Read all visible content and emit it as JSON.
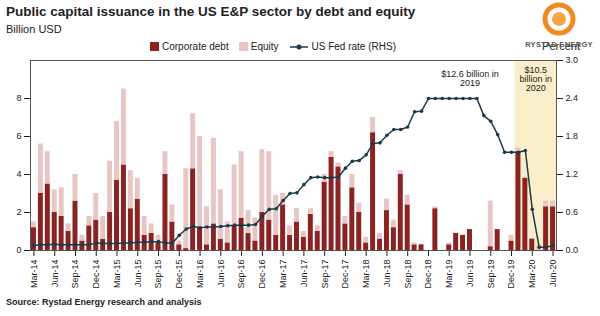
{
  "chart_data": {
    "type": "bar",
    "title": "Public capital issuance in the US E&P sector by debt and equity",
    "y_label": "Billion USD",
    "y2_label": "Percent",
    "source": "Source: Rystad Energy research and analysis",
    "logo": "RYSTAD ENERGY",
    "annotations": [
      "$12.6 billion in 2019",
      "$10.5 billion in 2020"
    ],
    "stacked": true,
    "grid": false,
    "legend": "top",
    "categories": [
      "Mar-14",
      null,
      null,
      "Jun-14",
      null,
      null,
      "Sep-14",
      null,
      null,
      "Dec-14",
      null,
      null,
      "Mar-15",
      null,
      null,
      "Jun-15",
      null,
      null,
      "Sep-15",
      null,
      null,
      "Dec-15",
      null,
      null,
      "Mar-16",
      null,
      null,
      "Jun-16",
      null,
      null,
      "Sep-16",
      null,
      null,
      "Dec-16",
      null,
      null,
      "Mar-17",
      null,
      null,
      "Jun-17",
      null,
      null,
      "Sep-17",
      null,
      null,
      "Dec-17",
      null,
      null,
      "Mar-18",
      null,
      null,
      "Jun-18",
      null,
      null,
      "Sep-18",
      null,
      null,
      "Dec-18",
      null,
      null,
      "Mar-19",
      null,
      null,
      "Jun-19",
      null,
      null,
      "Sep-19",
      null,
      null,
      "Dec-19",
      null,
      null,
      "Mar-20",
      null,
      null,
      "Jun-20"
    ],
    "series": [
      {
        "name": "Corporate debt",
        "type": "bar",
        "color": "#8b2323",
        "values": [
          1.2,
          3.0,
          3.5,
          2.0,
          1.8,
          1.0,
          2.6,
          0.5,
          1.3,
          1.6,
          0.6,
          2.0,
          3.7,
          4.5,
          2.2,
          2.7,
          0.8,
          0.9,
          0.4,
          4.0,
          1.5,
          0.3,
          0.1,
          4.3,
          1.2,
          0.3,
          1.4,
          0.6,
          0.4,
          1.3,
          1.7,
          0.9,
          0.5,
          2.0,
          1.6,
          0.8,
          2.4,
          0.8,
          1.5,
          0.7,
          1.9,
          1.0,
          3.6,
          4.9,
          4.4,
          1.4,
          3.3,
          2.0,
          0.4,
          6.2,
          0.6,
          2.1,
          1.2,
          4.0,
          2.4,
          0.3,
          0.3,
          0.0,
          2.2,
          0.0,
          0.3,
          0.9,
          0.8,
          1.1,
          0.0,
          0.0,
          0.2,
          1.1,
          0.0,
          0.5,
          5.2,
          3.8,
          0.6,
          0.0,
          2.3,
          2.3
        ]
      },
      {
        "name": "Equity",
        "type": "bar",
        "color": "#e9c6c6",
        "values": [
          0.3,
          2.6,
          1.7,
          1.2,
          1.5,
          0.4,
          1.4,
          0.3,
          0.5,
          1.4,
          1.2,
          2.7,
          3.1,
          4.0,
          2.0,
          1.1,
          1.0,
          0.5,
          0.4,
          1.2,
          0.9,
          0.2,
          4.2,
          2.9,
          4.8,
          2.0,
          4.5,
          2.6,
          1.1,
          3.2,
          3.5,
          1.2,
          1.2,
          3.3,
          3.6,
          2.1,
          0.6,
          0.5,
          0.7,
          0.3,
          0.3,
          0.3,
          0.4,
          0.3,
          0.2,
          0.4,
          0.7,
          0.5,
          0.3,
          0.8,
          0.3,
          0.6,
          0.4,
          0.2,
          0.5,
          0.1,
          0.0,
          0.0,
          0.1,
          0.0,
          0.1,
          0.0,
          0.0,
          0.0,
          0.0,
          0.0,
          2.4,
          0.0,
          0.0,
          0.3,
          0.2,
          0.0,
          0.0,
          0.3,
          0.3,
          0.3
        ]
      },
      {
        "name": "US Fed rate (RHS)",
        "type": "line",
        "axis": "y2",
        "color": "#1c3b4a",
        "marker": "circle",
        "values": [
          0.08,
          0.09,
          0.09,
          0.1,
          0.09,
          0.09,
          0.09,
          0.09,
          0.09,
          0.12,
          0.11,
          0.11,
          0.11,
          0.12,
          0.12,
          0.13,
          0.13,
          0.14,
          0.14,
          0.12,
          0.12,
          0.24,
          0.34,
          0.38,
          0.36,
          0.37,
          0.37,
          0.38,
          0.39,
          0.4,
          0.4,
          0.4,
          0.41,
          0.54,
          0.65,
          0.66,
          0.79,
          0.9,
          0.91,
          1.04,
          1.15,
          1.16,
          1.15,
          1.15,
          1.16,
          1.3,
          1.41,
          1.42,
          1.51,
          1.69,
          1.7,
          1.82,
          1.91,
          1.91,
          1.95,
          2.19,
          2.2,
          2.4,
          2.4,
          2.4,
          2.4,
          2.4,
          2.4,
          2.4,
          2.4,
          2.13,
          2.04,
          1.83,
          1.55,
          1.55,
          1.55,
          1.58,
          0.65,
          0.05,
          0.05,
          0.08
        ]
      }
    ],
    "ylim": [
      0,
      10
    ],
    "yticks": [
      0,
      2,
      4,
      6,
      8
    ],
    "y2lim": [
      0,
      3
    ],
    "y2ticks": [
      {
        "value": 0,
        "label": "0.0"
      },
      0.6,
      1.2,
      1.8,
      2.4,
      {
        "value": 3,
        "label": "3.0"
      }
    ]
  }
}
